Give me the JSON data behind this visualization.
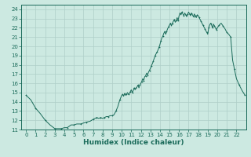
{
  "title": "",
  "xlabel": "Humidex (Indice chaleur)",
  "ylabel": "",
  "xlim": [
    -0.5,
    23
  ],
  "ylim": [
    11,
    24.5
  ],
  "xticks": [
    0,
    1,
    2,
    3,
    4,
    5,
    6,
    7,
    8,
    9,
    10,
    11,
    12,
    13,
    14,
    15,
    16,
    17,
    18,
    19,
    20,
    21,
    22
  ],
  "yticks": [
    11,
    12,
    13,
    14,
    15,
    16,
    17,
    18,
    19,
    20,
    21,
    22,
    23,
    24
  ],
  "bg_color": "#cce9e1",
  "line_color": "#1a6b5a",
  "grid_color": "#aecfc8",
  "x": [
    0,
    0.5,
    1,
    1.5,
    2,
    2.5,
    3,
    3.3,
    3.7,
    4,
    4.3,
    4.7,
    5,
    5.3,
    5.7,
    6,
    6.3,
    6.7,
    7,
    7.2,
    7.4,
    7.6,
    7.8,
    8,
    8.2,
    8.4,
    8.6,
    8.8,
    9,
    9.2,
    9.4,
    9.6,
    9.8,
    10,
    10.1,
    10.2,
    10.3,
    10.4,
    10.5,
    10.6,
    10.7,
    10.8,
    10.9,
    11,
    11.1,
    11.2,
    11.3,
    11.4,
    11.5,
    11.6,
    11.7,
    11.8,
    11.9,
    12,
    12.1,
    12.2,
    12.3,
    12.4,
    12.5,
    12.6,
    12.7,
    12.8,
    12.9,
    13,
    13.1,
    13.2,
    13.3,
    13.4,
    13.5,
    13.6,
    13.7,
    13.8,
    13.9,
    14,
    14.1,
    14.2,
    14.3,
    14.4,
    14.5,
    14.6,
    14.7,
    14.8,
    14.9,
    15,
    15.1,
    15.2,
    15.3,
    15.4,
    15.5,
    15.6,
    15.7,
    15.8,
    15.9,
    16,
    16.1,
    16.2,
    16.3,
    16.4,
    16.5,
    16.6,
    16.7,
    16.8,
    16.9,
    17,
    17.1,
    17.2,
    17.3,
    17.4,
    17.5,
    17.6,
    17.7,
    17.8,
    17.9,
    18,
    18.1,
    18.2,
    18.3,
    18.4,
    18.5,
    18.6,
    18.7,
    18.8,
    18.9,
    19,
    19.1,
    19.2,
    19.3,
    19.4,
    19.5,
    19.6,
    19.7,
    19.8,
    19.9,
    20,
    20.2,
    20.4,
    20.6,
    20.8,
    21,
    21.2,
    21.4,
    21.6,
    21.8,
    22,
    22.3,
    22.6,
    22.9
  ],
  "y": [
    14.7,
    14.2,
    13.3,
    12.7,
    12.0,
    11.5,
    11.1,
    11.1,
    11.1,
    11.2,
    11.2,
    11.5,
    11.5,
    11.6,
    11.6,
    11.7,
    11.8,
    11.9,
    12.1,
    12.2,
    12.3,
    12.2,
    12.3,
    12.2,
    12.3,
    12.4,
    12.4,
    12.5,
    12.5,
    12.6,
    13.0,
    13.5,
    14.2,
    14.7,
    14.8,
    14.6,
    14.9,
    14.7,
    14.8,
    15.0,
    14.8,
    14.9,
    15.1,
    15.3,
    15.0,
    15.2,
    15.5,
    15.3,
    15.5,
    15.6,
    15.8,
    15.5,
    15.8,
    16.0,
    16.2,
    16.5,
    16.3,
    16.7,
    16.8,
    17.1,
    16.9,
    17.2,
    17.4,
    17.6,
    17.9,
    18.1,
    18.4,
    18.7,
    19.0,
    19.2,
    19.4,
    19.6,
    19.9,
    20.2,
    20.6,
    20.9,
    21.1,
    21.4,
    21.6,
    21.3,
    21.6,
    21.9,
    22.1,
    22.3,
    22.5,
    22.2,
    22.5,
    22.7,
    22.9,
    22.6,
    22.8,
    23.1,
    22.8,
    23.3,
    23.6,
    23.4,
    23.7,
    23.5,
    23.3,
    23.6,
    23.4,
    23.2,
    23.5,
    23.7,
    23.5,
    23.3,
    23.6,
    23.4,
    23.2,
    23.5,
    23.3,
    23.1,
    23.4,
    23.3,
    23.1,
    22.9,
    22.7,
    22.5,
    22.3,
    22.1,
    21.9,
    21.7,
    21.5,
    21.3,
    22.0,
    22.3,
    22.5,
    22.3,
    22.0,
    22.4,
    22.2,
    22.0,
    21.8,
    22.0,
    22.3,
    22.5,
    22.2,
    21.9,
    21.5,
    21.3,
    21.0,
    18.5,
    17.5,
    16.5,
    15.8,
    15.2,
    14.7
  ]
}
